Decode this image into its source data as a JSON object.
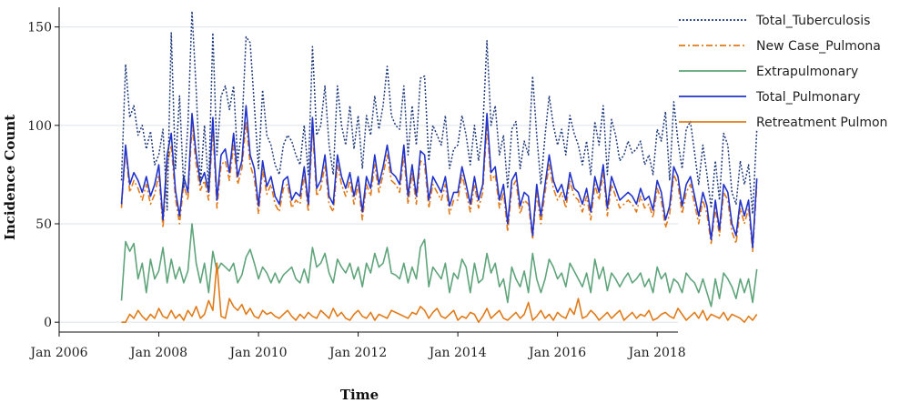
{
  "chart_data": {
    "type": "line",
    "title": "",
    "xlabel": "Time",
    "ylabel": "Incidence Count",
    "x_unit": "month",
    "x_ticks": [
      "Jan 2006",
      "Jan 2008",
      "Jan 2010",
      "Jan 2012",
      "Jan 2014",
      "Jan 2016",
      "Jan 2018"
    ],
    "y_ticks": [
      0,
      50,
      100,
      150
    ],
    "xlim": [
      "2006-01",
      "2018-06"
    ],
    "ylim": [
      -5,
      160
    ],
    "grid": true,
    "legend": "right",
    "x_start": "2007-04",
    "series": [
      {
        "name": "Total_Tuberculosis",
        "color": "#1f3a7a",
        "dash": "dotted",
        "values": [
          72,
          131,
          104,
          110,
          95,
          100,
          88,
          97,
          80,
          85,
          98,
          57,
          147,
          78,
          115,
          68,
          100,
          158,
          118,
          70,
          100,
          68,
          147,
          85,
          115,
          120,
          108,
          120,
          82,
          98,
          145,
          142,
          110,
          78,
          118,
          95,
          90,
          80,
          75,
          90,
          95,
          92,
          85,
          80,
          100,
          75,
          140,
          95,
          100,
          120,
          90,
          75,
          120,
          100,
          90,
          110,
          88,
          105,
          78,
          105,
          95,
          115,
          98,
          110,
          130,
          105,
          100,
          98,
          120,
          85,
          110,
          90,
          124,
          125,
          82,
          100,
          95,
          90,
          105,
          78,
          88,
          90,
          105,
          95,
          80,
          100,
          82,
          98,
          143,
          100,
          110,
          85,
          95,
          68,
          98,
          102,
          78,
          92,
          85,
          125,
          95,
          70,
          95,
          115,
          100,
          90,
          98,
          85,
          105,
          96,
          90,
          80,
          92,
          75,
          102,
          90,
          110,
          75,
          103,
          95,
          82,
          85,
          92,
          86,
          88,
          92,
          80,
          85,
          75,
          98,
          92,
          107,
          72,
          112,
          92,
          78,
          98,
          102,
          86,
          70,
          90,
          75,
          58,
          82,
          62,
          96,
          90,
          66,
          60,
          82,
          70,
          80,
          55,
          98
        ]
      },
      {
        "name": "New Case_Pulmona",
        "color": "#e07b1a",
        "dash": "dashdot",
        "values": [
          58,
          88,
          66,
          72,
          68,
          62,
          70,
          60,
          65,
          75,
          48,
          80,
          90,
          63,
          50,
          70,
          62,
          100,
          80,
          67,
          72,
          62,
          98,
          58,
          80,
          82,
          72,
          90,
          70,
          78,
          102,
          80,
          73,
          55,
          78,
          65,
          70,
          60,
          56,
          68,
          70,
          58,
          62,
          60,
          75,
          56,
          98,
          64,
          68,
          80,
          60,
          56,
          80,
          70,
          64,
          72,
          60,
          70,
          52,
          70,
          64,
          80,
          66,
          75,
          85,
          72,
          70,
          66,
          85,
          60,
          76,
          60,
          82,
          80,
          58,
          70,
          66,
          62,
          70,
          55,
          62,
          62,
          75,
          66,
          56,
          70,
          58,
          66,
          100,
          72,
          75,
          58,
          66,
          46,
          68,
          72,
          55,
          62,
          60,
          42,
          66,
          50,
          66,
          80,
          68,
          62,
          66,
          58,
          72,
          64,
          62,
          56,
          64,
          52,
          70,
          62,
          76,
          54,
          70,
          64,
          58,
          60,
          62,
          60,
          56,
          64,
          58,
          60,
          53,
          68,
          62,
          48,
          55,
          75,
          70,
          55,
          66,
          70,
          60,
          50,
          62,
          55,
          40,
          58,
          44,
          66,
          62,
          46,
          40,
          58,
          50,
          58,
          36,
          70
        ]
      },
      {
        "name": "Extrapulmonary",
        "color": "#5fa47a",
        "dash": "solid",
        "values": [
          11,
          41,
          36,
          40,
          22,
          30,
          15,
          32,
          22,
          26,
          38,
          20,
          32,
          22,
          28,
          20,
          26,
          50,
          30,
          20,
          30,
          15,
          36,
          26,
          30,
          28,
          26,
          30,
          20,
          24,
          33,
          37,
          30,
          22,
          28,
          25,
          20,
          25,
          20,
          24,
          26,
          28,
          22,
          20,
          27,
          20,
          38,
          28,
          30,
          35,
          25,
          20,
          32,
          28,
          25,
          30,
          22,
          28,
          18,
          30,
          25,
          35,
          28,
          30,
          38,
          25,
          24,
          22,
          30,
          20,
          28,
          22,
          38,
          42,
          18,
          28,
          25,
          22,
          30,
          15,
          25,
          22,
          32,
          28,
          15,
          30,
          20,
          22,
          35,
          25,
          30,
          18,
          22,
          10,
          28,
          22,
          18,
          26,
          15,
          35,
          22,
          15,
          22,
          32,
          28,
          22,
          25,
          18,
          30,
          26,
          22,
          18,
          25,
          15,
          32,
          22,
          28,
          16,
          25,
          22,
          18,
          22,
          25,
          20,
          22,
          25,
          18,
          22,
          15,
          28,
          22,
          25,
          15,
          22,
          20,
          15,
          25,
          22,
          20,
          15,
          22,
          15,
          8,
          22,
          12,
          25,
          22,
          18,
          12,
          22,
          15,
          22,
          10,
          27
        ]
      },
      {
        "name": "Total_Pulmonary",
        "color": "#2233cc",
        "dash": "solid",
        "values": [
          60,
          90,
          70,
          76,
          72,
          66,
          74,
          64,
          70,
          80,
          52,
          85,
          96,
          67,
          54,
          74,
          66,
          106,
          85,
          71,
          76,
          66,
          104,
          62,
          85,
          88,
          76,
          96,
          74,
          82,
          110,
          85,
          78,
          59,
          82,
          69,
          74,
          64,
          60,
          72,
          74,
          62,
          66,
          64,
          79,
          60,
          104,
          68,
          72,
          85,
          64,
          60,
          85,
          74,
          68,
          76,
          64,
          74,
          56,
          74,
          68,
          85,
          70,
          79,
          90,
          76,
          74,
          70,
          90,
          64,
          80,
          64,
          87,
          85,
          62,
          74,
          70,
          66,
          74,
          59,
          66,
          66,
          79,
          70,
          60,
          74,
          62,
          70,
          106,
          76,
          79,
          62,
          70,
          50,
          72,
          76,
          59,
          66,
          64,
          44,
          70,
          54,
          70,
          85,
          72,
          66,
          70,
          62,
          76,
          68,
          66,
          60,
          68,
          56,
          74,
          66,
          80,
          58,
          74,
          68,
          62,
          64,
          66,
          64,
          60,
          68,
          62,
          64,
          57,
          72,
          66,
          52,
          59,
          79,
          74,
          59,
          70,
          74,
          64,
          54,
          66,
          59,
          42,
          62,
          47,
          70,
          66,
          50,
          44,
          62,
          54,
          62,
          38,
          73
        ]
      },
      {
        "name": "Retreatment Pulmon",
        "color": "#e07b1a",
        "dash": "solid",
        "values": [
          0,
          0,
          4,
          2,
          6,
          3,
          1,
          4,
          2,
          7,
          3,
          2,
          6,
          2,
          4,
          1,
          6,
          3,
          8,
          2,
          4,
          11,
          6,
          30,
          3,
          2,
          12,
          8,
          6,
          9,
          4,
          7,
          3,
          2,
          6,
          4,
          5,
          3,
          2,
          4,
          6,
          3,
          1,
          4,
          2,
          5,
          3,
          2,
          6,
          4,
          2,
          7,
          3,
          5,
          2,
          1,
          4,
          6,
          3,
          2,
          5,
          1,
          4,
          3,
          2,
          6,
          5,
          4,
          3,
          2,
          5,
          4,
          8,
          6,
          2,
          5,
          7,
          3,
          2,
          4,
          6,
          1,
          3,
          2,
          5,
          4,
          0,
          3,
          7,
          2,
          4,
          6,
          2,
          1,
          3,
          5,
          2,
          4,
          10,
          1,
          3,
          6,
          2,
          4,
          1,
          5,
          3,
          2,
          7,
          4,
          12,
          2,
          3,
          6,
          4,
          1,
          3,
          5,
          2,
          4,
          6,
          1,
          3,
          5,
          2,
          4,
          3,
          6,
          1,
          2,
          4,
          5,
          3,
          2,
          7,
          4,
          1,
          3,
          5,
          2,
          6,
          1,
          4,
          3,
          2,
          5,
          1,
          4,
          3,
          2,
          0,
          3,
          1,
          4
        ]
      }
    ]
  }
}
